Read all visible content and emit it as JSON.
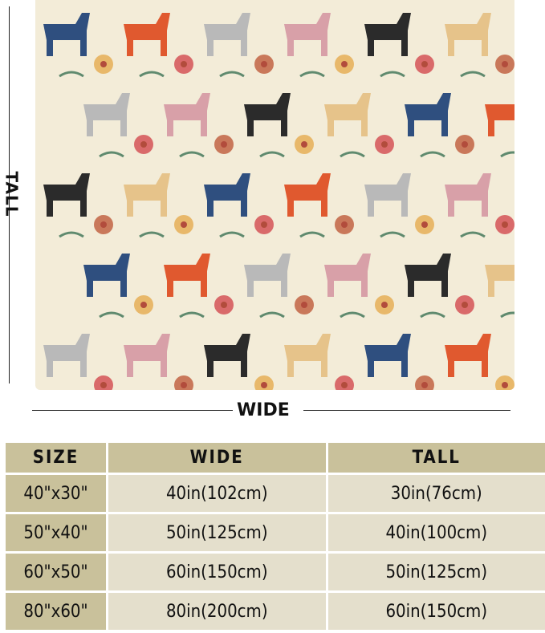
{
  "image": {
    "product": "blanket",
    "pattern": "folk horses and flowers",
    "background_color": "#f3ecd8"
  },
  "dimension_labels": {
    "tall": "TALL",
    "wide": "WIDE"
  },
  "size_table": {
    "headers": [
      "SIZE",
      "WIDE",
      "TALL"
    ],
    "rows": [
      [
        "40\"x30\"",
        "40in(102cm)",
        "30in(76cm)"
      ],
      [
        "50\"x40\"",
        "50in(125cm)",
        "40in(100cm)"
      ],
      [
        "60\"x50\"",
        "60in(150cm)",
        "50in(125cm)"
      ],
      [
        "80\"x60\"",
        "80in(200cm)",
        "60in(150cm)"
      ]
    ],
    "header_color": "#c9c19b",
    "body_color": "#e4dfcc"
  }
}
